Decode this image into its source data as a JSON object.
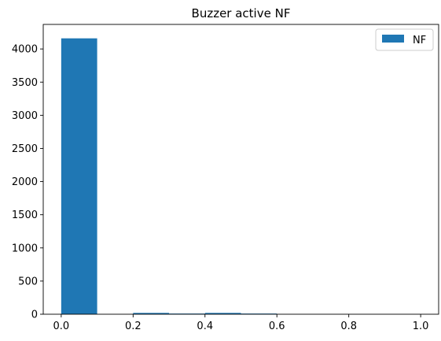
{
  "chart_data": {
    "type": "bar",
    "title": "Buzzer active NF",
    "xlabel": "",
    "ylabel": "",
    "xlim": [
      -0.05,
      1.05
    ],
    "ylim": [
      0,
      4370
    ],
    "x_ticks": [
      0.0,
      0.2,
      0.4,
      0.6,
      0.8,
      1.0
    ],
    "x_tick_labels": [
      "0.0",
      "0.2",
      "0.4",
      "0.6",
      "0.8",
      "1.0"
    ],
    "y_ticks": [
      0,
      500,
      1000,
      1500,
      2000,
      2500,
      3000,
      3500,
      4000
    ],
    "y_tick_labels": [
      "0",
      "500",
      "1000",
      "1500",
      "2000",
      "2500",
      "3000",
      "3500",
      "4000"
    ],
    "bin_edges": [
      0.0,
      0.1,
      0.2,
      0.3,
      0.4,
      0.5,
      0.6,
      0.7,
      0.8,
      0.9,
      1.0
    ],
    "series": [
      {
        "name": "NF",
        "color": "#1f77b4",
        "values": [
          4160,
          0,
          20,
          10,
          20,
          10,
          0,
          0,
          0,
          0
        ]
      }
    ],
    "legend": {
      "position": "top-right",
      "entries": [
        "NF"
      ]
    },
    "grid": false
  }
}
